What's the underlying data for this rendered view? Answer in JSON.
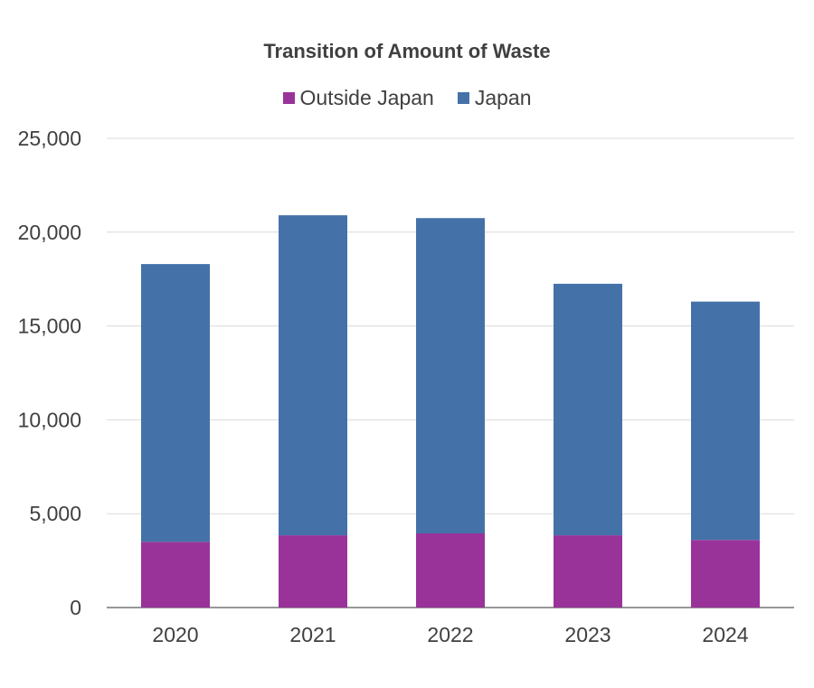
{
  "chart_data": {
    "type": "bar",
    "stacked": true,
    "title": "Transition of Amount of Waste",
    "xlabel": "",
    "ylabel": "",
    "categories": [
      "2020",
      "2021",
      "2022",
      "2023",
      "2024"
    ],
    "series": [
      {
        "name": "Outside Japan",
        "color": "#993399",
        "values": [
          3500,
          3850,
          3950,
          3850,
          3600
        ]
      },
      {
        "name": "Japan",
        "color": "#4472a8",
        "values": [
          14800,
          17050,
          16800,
          13400,
          12700
        ]
      }
    ],
    "ylim": [
      0,
      25000
    ],
    "yticks": [
      0,
      5000,
      10000,
      15000,
      20000,
      25000
    ],
    "ytick_labels": [
      "0",
      "5,000",
      "10,000",
      "15,000",
      "20,000",
      "25,000"
    ],
    "grid": true,
    "legend_position": "top-center"
  }
}
